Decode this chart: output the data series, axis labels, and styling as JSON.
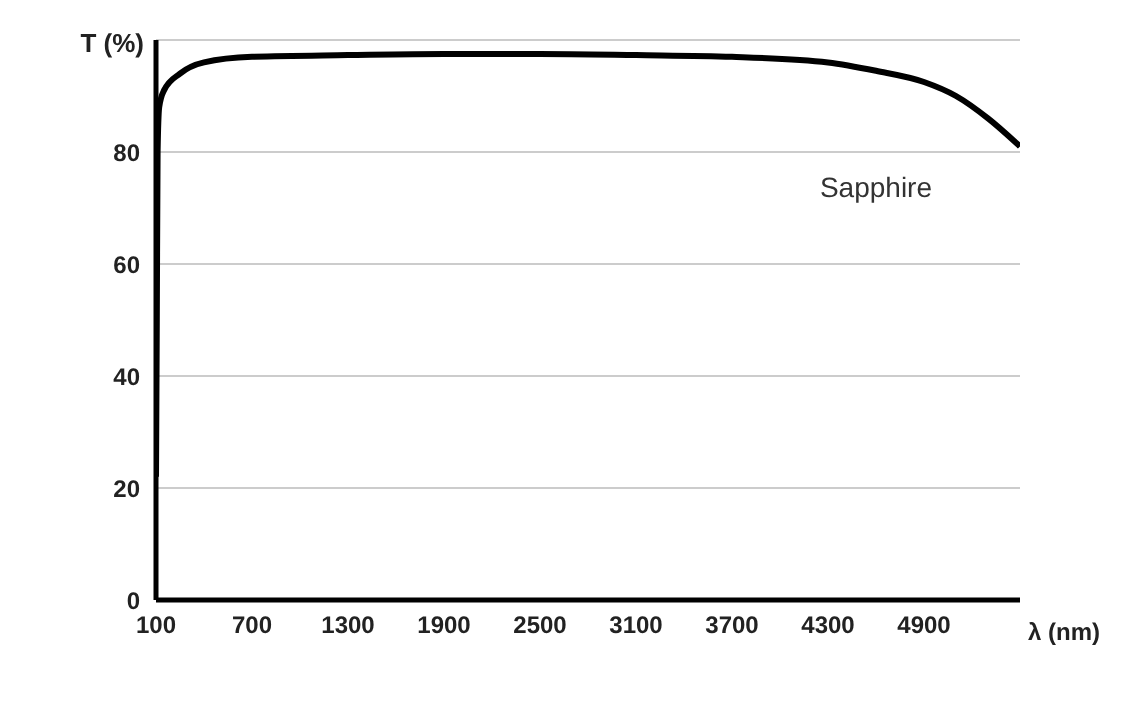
{
  "chart_data": {
    "type": "line",
    "xlabel": "λ (nm)",
    "ylabel": "T (%)",
    "x": [
      100,
      105,
      110,
      120,
      150,
      250,
      400,
      700,
      1300,
      1900,
      2500,
      3100,
      3700,
      4300,
      4600,
      4900,
      5100,
      5300,
      5500
    ],
    "series": [
      {
        "name": "Sapphire",
        "color": "#000000",
        "values": [
          22,
          50,
          80,
          88,
          91,
          94,
          96,
          97,
          97.3,
          97.5,
          97.5,
          97.3,
          97,
          96,
          94.5,
          92.5,
          90,
          86,
          81
        ]
      }
    ],
    "xlim": [
      100,
      5500
    ],
    "xticks": [
      100,
      700,
      1300,
      1900,
      2500,
      3100,
      3700,
      4300,
      4900
    ],
    "ylim": [
      0,
      100
    ],
    "yticks": [
      0,
      20,
      40,
      60,
      80
    ],
    "grid": "y",
    "marker": "none",
    "line_style": "solid"
  }
}
